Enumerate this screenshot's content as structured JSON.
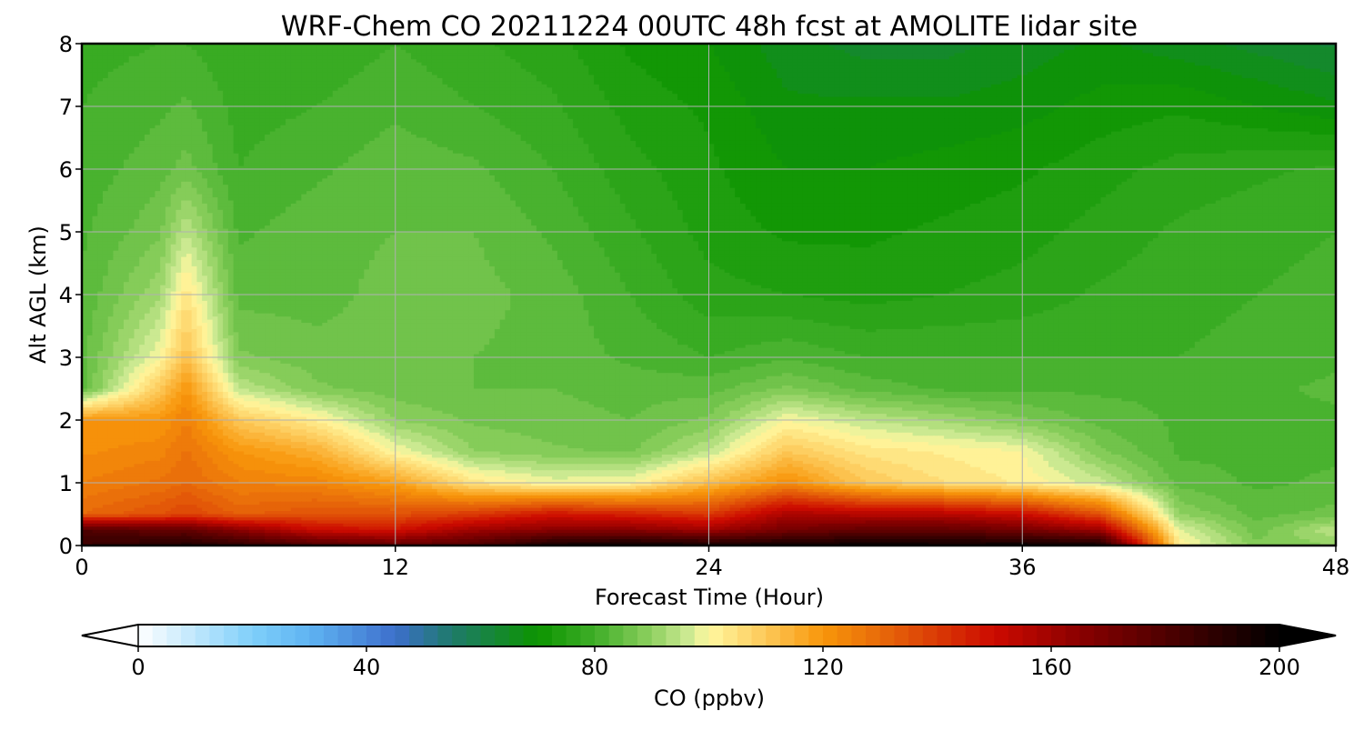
{
  "chart_data": {
    "type": "heatmap",
    "title": "WRF-Chem CO  20211224 00UTC 48h fcst at AMOLITE lidar site",
    "xlabel": "Forecast Time (Hour)",
    "ylabel": "Alt AGL (km)",
    "xlim": [
      0,
      48
    ],
    "ylim": [
      0,
      8
    ],
    "x_ticks": [
      "0",
      "12",
      "24",
      "36",
      "48"
    ],
    "y_ticks": [
      "0",
      "1",
      "2",
      "3",
      "4",
      "5",
      "6",
      "7",
      "8"
    ],
    "grid": true,
    "x": [
      0,
      3,
      4,
      6,
      9,
      12,
      15,
      18,
      21,
      24,
      27,
      30,
      33,
      36,
      39,
      42,
      45,
      48
    ],
    "y": [
      0,
      0.25,
      0.5,
      1,
      1.5,
      2,
      2.5,
      3,
      4,
      5,
      6,
      7,
      8
    ],
    "z": [
      [
        185,
        190,
        192,
        188,
        180,
        175,
        180,
        195,
        198,
        195,
        196,
        198,
        197,
        198,
        196,
        102,
        88,
        90
      ],
      [
        180,
        175,
        175,
        165,
        150,
        148,
        160,
        165,
        165,
        160,
        170,
        175,
        175,
        170,
        160,
        98,
        86,
        95
      ],
      [
        130,
        135,
        138,
        132,
        135,
        135,
        140,
        148,
        145,
        140,
        158,
        155,
        155,
        150,
        135,
        90,
        84,
        86
      ],
      [
        125,
        128,
        130,
        125,
        124,
        118,
        104,
        99,
        100,
        112,
        122,
        110,
        105,
        102,
        96,
        84,
        82,
        83
      ],
      [
        122,
        124,
        128,
        120,
        115,
        100,
        90,
        88,
        87,
        95,
        110,
        104,
        102,
        100,
        88,
        82,
        82,
        82
      ],
      [
        120,
        120,
        125,
        110,
        102,
        90,
        87,
        86,
        85,
        88,
        100,
        95,
        92,
        88,
        84,
        82,
        82,
        82
      ],
      [
        84,
        110,
        120,
        95,
        88,
        86,
        85,
        85,
        84,
        84,
        88,
        84,
        82,
        82,
        82,
        82,
        82,
        83
      ],
      [
        84,
        100,
        112,
        88,
        86,
        86,
        85,
        84,
        82,
        80,
        82,
        80,
        80,
        80,
        80,
        80,
        81,
        82
      ],
      [
        83,
        92,
        104,
        84,
        84,
        86,
        86,
        84,
        80,
        76,
        75,
        74,
        75,
        76,
        78,
        79,
        80,
        81
      ],
      [
        82,
        87,
        95,
        82,
        84,
        85,
        85,
        82,
        78,
        74,
        72,
        72,
        73,
        74,
        76,
        78,
        79,
        80
      ],
      [
        81,
        84,
        86,
        80,
        82,
        84,
        83,
        80,
        76,
        73,
        70,
        70,
        71,
        72,
        74,
        76,
        77,
        78
      ],
      [
        80,
        82,
        83,
        79,
        80,
        82,
        80,
        78,
        74,
        72,
        68,
        68,
        68,
        69,
        71,
        72,
        70,
        68
      ],
      [
        79,
        80,
        80,
        78,
        78,
        80,
        78,
        76,
        72,
        70,
        66,
        64,
        64,
        66,
        68,
        66,
        64,
        62
      ]
    ],
    "colorbar": {
      "label": "CO  (ppbv)",
      "min": 0,
      "max": 200,
      "ticks": [
        "0",
        "40",
        "80",
        "120",
        "160",
        "200"
      ],
      "extend": "both",
      "levels": 80,
      "stops": [
        [
          0,
          "#ffffff"
        ],
        [
          20,
          "#7fcffa"
        ],
        [
          30,
          "#5fb4f2"
        ],
        [
          45,
          "#3d6fcc"
        ],
        [
          55,
          "#1e7a6a"
        ],
        [
          70,
          "#0c9400"
        ],
        [
          80,
          "#3fae28"
        ],
        [
          90,
          "#8fd060"
        ],
        [
          96,
          "#c8e890"
        ],
        [
          100,
          "#fff8a0"
        ],
        [
          110,
          "#fdc858"
        ],
        [
          120,
          "#f8960a"
        ],
        [
          130,
          "#e86a0a"
        ],
        [
          150,
          "#cc0a00"
        ],
        [
          165,
          "#8a0000"
        ],
        [
          200,
          "#000000"
        ]
      ]
    }
  }
}
